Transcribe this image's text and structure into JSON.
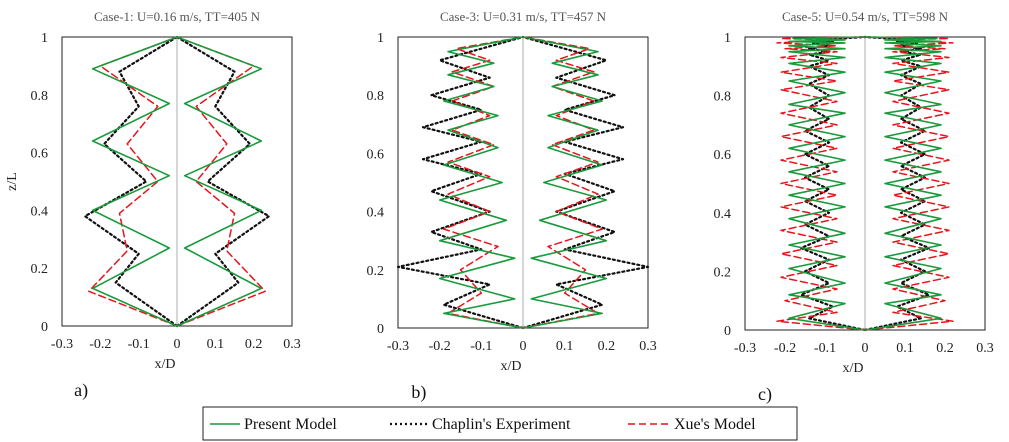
{
  "legend": {
    "items": [
      {
        "label": "Present Model",
        "color": "#1a9a3c",
        "style": "solid"
      },
      {
        "label": "Chaplin's Experiment",
        "color": "#111111",
        "style": "dotted"
      },
      {
        "label": "Xue's Model",
        "color": "#e8141b",
        "style": "dashed"
      }
    ]
  },
  "chart_data": [
    {
      "type": "line",
      "title": "Case-1: U=0.16 m/s, TT=405 N",
      "panel_label": "a)",
      "xlabel": "x/D",
      "ylabel": "z/L",
      "xlim": [
        -0.3,
        0.3
      ],
      "ylim": [
        0,
        1
      ],
      "xticks": [
        "-0.3",
        "-0.2",
        "-0.1",
        "0",
        "0.1",
        "0.2",
        "0.3"
      ],
      "yticks": [
        "0",
        "0.2",
        "0.4",
        "0.6",
        "0.8",
        "1"
      ],
      "series": [
        {
          "name": "Present Model",
          "mirror": true,
          "x": [
            0,
            0.22,
            0.02,
            0.22,
            0.02,
            0.22,
            0.02,
            0.22,
            0.0
          ],
          "y": [
            0,
            0.13,
            0.27,
            0.4,
            0.52,
            0.64,
            0.77,
            0.89,
            1.0
          ]
        },
        {
          "name": "Chaplin's Experiment",
          "mirror": true,
          "x": [
            0,
            0.16,
            0.1,
            0.24,
            0.08,
            0.19,
            0.1,
            0.15,
            0.0
          ],
          "y": [
            0,
            0.15,
            0.25,
            0.38,
            0.5,
            0.63,
            0.76,
            0.88,
            1.0
          ]
        },
        {
          "name": "Xue's Model",
          "mirror": true,
          "x": [
            0,
            0.23,
            0.13,
            0.15,
            0.05,
            0.13,
            0.05,
            0.2,
            0.0
          ],
          "y": [
            0,
            0.12,
            0.26,
            0.39,
            0.5,
            0.63,
            0.76,
            0.9,
            1.0
          ]
        }
      ]
    },
    {
      "type": "line",
      "title": "Case-3: U=0.31 m/s, TT=457 N",
      "panel_label": "b)",
      "xlabel": "x/D",
      "ylabel": "",
      "xlim": [
        -0.3,
        0.3
      ],
      "ylim": [
        0,
        1
      ],
      "xticks": [
        "-0.3",
        "-0.2",
        "-0.1",
        "0",
        "0.1",
        "0.2",
        "0.3"
      ],
      "yticks": [
        "0",
        "0.2",
        "0.4",
        "0.6",
        "0.8",
        "1"
      ],
      "series": [
        {
          "name": "Present Model",
          "mirror": true,
          "x": [
            0.0,
            0.19,
            0.02,
            0.2,
            0.02,
            0.2,
            0.04,
            0.2,
            0.05,
            0.19,
            0.06,
            0.18,
            0.06,
            0.19,
            0.07,
            0.18,
            0.07,
            0.18,
            0.0
          ],
          "y": [
            0.0,
            0.05,
            0.1,
            0.17,
            0.24,
            0.3,
            0.37,
            0.44,
            0.5,
            0.56,
            0.62,
            0.68,
            0.73,
            0.78,
            0.83,
            0.87,
            0.91,
            0.95,
            1.0
          ]
        },
        {
          "name": "Chaplin's Experiment",
          "mirror": true,
          "x": [
            0.0,
            0.19,
            0.08,
            0.3,
            0.1,
            0.22,
            0.08,
            0.22,
            0.1,
            0.24,
            0.1,
            0.24,
            0.1,
            0.22,
            0.08,
            0.2,
            0.0
          ],
          "y": [
            0.0,
            0.08,
            0.15,
            0.21,
            0.27,
            0.33,
            0.4,
            0.47,
            0.53,
            0.58,
            0.64,
            0.69,
            0.75,
            0.8,
            0.86,
            0.92,
            1.0
          ]
        },
        {
          "name": "Xue's Model",
          "mirror": true,
          "x": [
            0.0,
            0.18,
            0.1,
            0.15,
            0.06,
            0.19,
            0.08,
            0.18,
            0.08,
            0.18,
            0.07,
            0.17,
            0.08,
            0.17,
            0.07,
            0.17,
            0.08,
            0.16,
            0.0
          ],
          "y": [
            0.0,
            0.05,
            0.12,
            0.2,
            0.28,
            0.34,
            0.4,
            0.46,
            0.52,
            0.57,
            0.63,
            0.68,
            0.73,
            0.78,
            0.83,
            0.88,
            0.92,
            0.96,
            1.0
          ]
        }
      ]
    },
    {
      "type": "line",
      "title": "Case-5: U=0.54 m/s, TT=598 N",
      "panel_label": "c)",
      "xlabel": "x/D",
      "ylabel": "",
      "xlim": [
        -0.3,
        0.3
      ],
      "ylim": [
        0,
        1
      ],
      "xticks": [
        "-0.3",
        "-0.2",
        "-0.1",
        "0",
        "0.1",
        "0.2",
        "0.3"
      ],
      "yticks": [
        "0",
        "0.2",
        "0.4",
        "0.6",
        "0.8",
        "1"
      ],
      "series": [
        {
          "name": "Present Model",
          "mirror": true,
          "x": [
            0.0,
            0.19,
            0.05,
            0.19,
            0.05,
            0.19,
            0.05,
            0.19,
            0.05,
            0.19,
            0.05,
            0.19,
            0.05,
            0.19,
            0.05,
            0.19,
            0.05,
            0.19,
            0.05,
            0.19,
            0.05,
            0.19,
            0.05,
            0.19,
            0.05,
            0.19,
            0.05,
            0.19,
            0.05,
            0.19,
            0.05,
            0.18,
            0.0
          ],
          "y": [
            0.0,
            0.04,
            0.09,
            0.12,
            0.16,
            0.21,
            0.25,
            0.29,
            0.33,
            0.38,
            0.42,
            0.46,
            0.5,
            0.54,
            0.58,
            0.62,
            0.66,
            0.7,
            0.74,
            0.77,
            0.81,
            0.85,
            0.88,
            0.91,
            0.93,
            0.95,
            0.96,
            0.97,
            0.98,
            0.985,
            0.99,
            0.995,
            1.0
          ]
        },
        {
          "name": "Chaplin's Experiment",
          "mirror": true,
          "x": [
            0.0,
            0.14,
            0.08,
            0.16,
            0.09,
            0.15,
            0.09,
            0.16,
            0.09,
            0.15,
            0.09,
            0.15,
            0.09,
            0.15,
            0.09,
            0.15,
            0.09,
            0.15,
            0.09,
            0.14,
            0.09,
            0.14,
            0.09,
            0.14,
            0.09,
            0.14,
            0.09,
            0.14,
            0.09,
            0.13,
            0.08,
            0.12,
            0.0
          ],
          "y": [
            0.0,
            0.04,
            0.08,
            0.12,
            0.16,
            0.2,
            0.24,
            0.28,
            0.32,
            0.36,
            0.4,
            0.44,
            0.48,
            0.52,
            0.56,
            0.6,
            0.64,
            0.68,
            0.72,
            0.76,
            0.8,
            0.84,
            0.87,
            0.9,
            0.92,
            0.94,
            0.95,
            0.96,
            0.97,
            0.98,
            0.985,
            0.99,
            1.0
          ]
        },
        {
          "name": "Xue's Model",
          "mirror": true,
          "x": [
            0.0,
            0.22,
            0.07,
            0.2,
            0.07,
            0.21,
            0.07,
            0.21,
            0.07,
            0.21,
            0.07,
            0.21,
            0.07,
            0.21,
            0.07,
            0.21,
            0.07,
            0.21,
            0.07,
            0.21,
            0.07,
            0.21,
            0.07,
            0.21,
            0.07,
            0.21,
            0.07,
            0.2,
            0.07,
            0.22,
            0.07,
            0.21,
            0.0
          ],
          "y": [
            0.0,
            0.03,
            0.06,
            0.1,
            0.14,
            0.18,
            0.22,
            0.26,
            0.3,
            0.34,
            0.38,
            0.42,
            0.46,
            0.5,
            0.54,
            0.58,
            0.62,
            0.66,
            0.7,
            0.74,
            0.78,
            0.82,
            0.85,
            0.88,
            0.91,
            0.93,
            0.95,
            0.96,
            0.97,
            0.98,
            0.99,
            0.995,
            1.0
          ]
        }
      ]
    }
  ]
}
